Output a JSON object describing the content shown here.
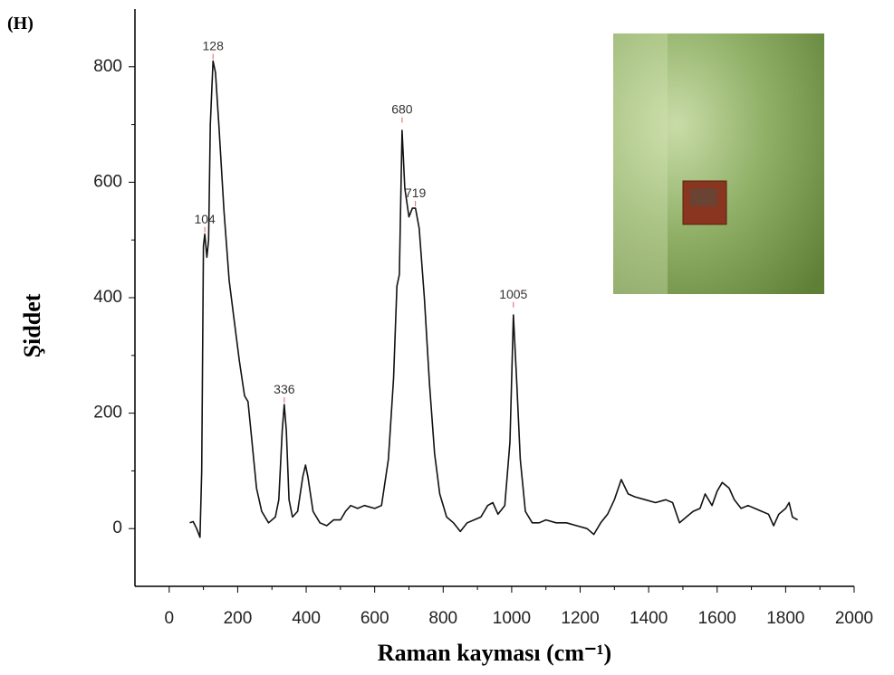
{
  "chart_data": {
    "type": "line",
    "panel_label": "(H)",
    "xlabel": "Raman kayması (cm⁻¹)",
    "ylabel": "Şiddet",
    "xlim": [
      -100,
      2000
    ],
    "ylim": [
      -100,
      900
    ],
    "xticks": [
      0,
      200,
      400,
      600,
      800,
      1000,
      1200,
      1400,
      1600,
      1800,
      2000
    ],
    "yticks": [
      0,
      200,
      400,
      600,
      800
    ],
    "series": [
      {
        "color": "#111111",
        "x": [
          60,
          70,
          80,
          90,
          95,
          100,
          104,
          110,
          115,
          120,
          128,
          135,
          145,
          160,
          175,
          190,
          205,
          220,
          230,
          240,
          255,
          270,
          290,
          310,
          320,
          330,
          336,
          342,
          350,
          360,
          375,
          390,
          398,
          405,
          420,
          440,
          460,
          480,
          500,
          515,
          530,
          550,
          570,
          600,
          620,
          640,
          655,
          665,
          672,
          680,
          688,
          700,
          710,
          719,
          730,
          745,
          760,
          775,
          790,
          810,
          830,
          850,
          870,
          890,
          910,
          930,
          945,
          960,
          980,
          995,
          1005,
          1015,
          1025,
          1040,
          1060,
          1080,
          1100,
          1130,
          1160,
          1190,
          1220,
          1240,
          1260,
          1280,
          1300,
          1320,
          1340,
          1360,
          1390,
          1420,
          1450,
          1470,
          1490,
          1510,
          1530,
          1550,
          1565,
          1585,
          1600,
          1615,
          1635,
          1650,
          1670,
          1690,
          1710,
          1730,
          1750,
          1765,
          1780,
          1800,
          1810,
          1820,
          1835
        ],
        "values": [
          10,
          12,
          0,
          -15,
          100,
          490,
          510,
          470,
          500,
          700,
          810,
          790,
          700,
          550,
          430,
          360,
          290,
          230,
          220,
          160,
          70,
          30,
          10,
          20,
          50,
          170,
          215,
          170,
          50,
          20,
          30,
          90,
          110,
          90,
          30,
          10,
          5,
          15,
          15,
          30,
          40,
          35,
          40,
          35,
          40,
          120,
          260,
          420,
          440,
          690,
          590,
          540,
          555,
          555,
          520,
          400,
          250,
          130,
          60,
          20,
          10,
          -5,
          10,
          15,
          20,
          40,
          45,
          25,
          40,
          150,
          370,
          250,
          120,
          30,
          10,
          10,
          15,
          10,
          10,
          5,
          0,
          -10,
          10,
          25,
          50,
          85,
          60,
          55,
          50,
          45,
          50,
          45,
          10,
          20,
          30,
          35,
          60,
          40,
          65,
          80,
          70,
          50,
          35,
          40,
          35,
          30,
          25,
          5,
          25,
          35,
          45,
          20,
          15
        ]
      }
    ],
    "annotations": [
      {
        "x": 104,
        "y": 510
      },
      {
        "x": 128,
        "y": 810
      },
      {
        "x": 336,
        "y": 215
      },
      {
        "x": 680,
        "y": 700
      },
      {
        "x": 719,
        "y": 555
      },
      {
        "x": 1005,
        "y": 380
      }
    ]
  }
}
